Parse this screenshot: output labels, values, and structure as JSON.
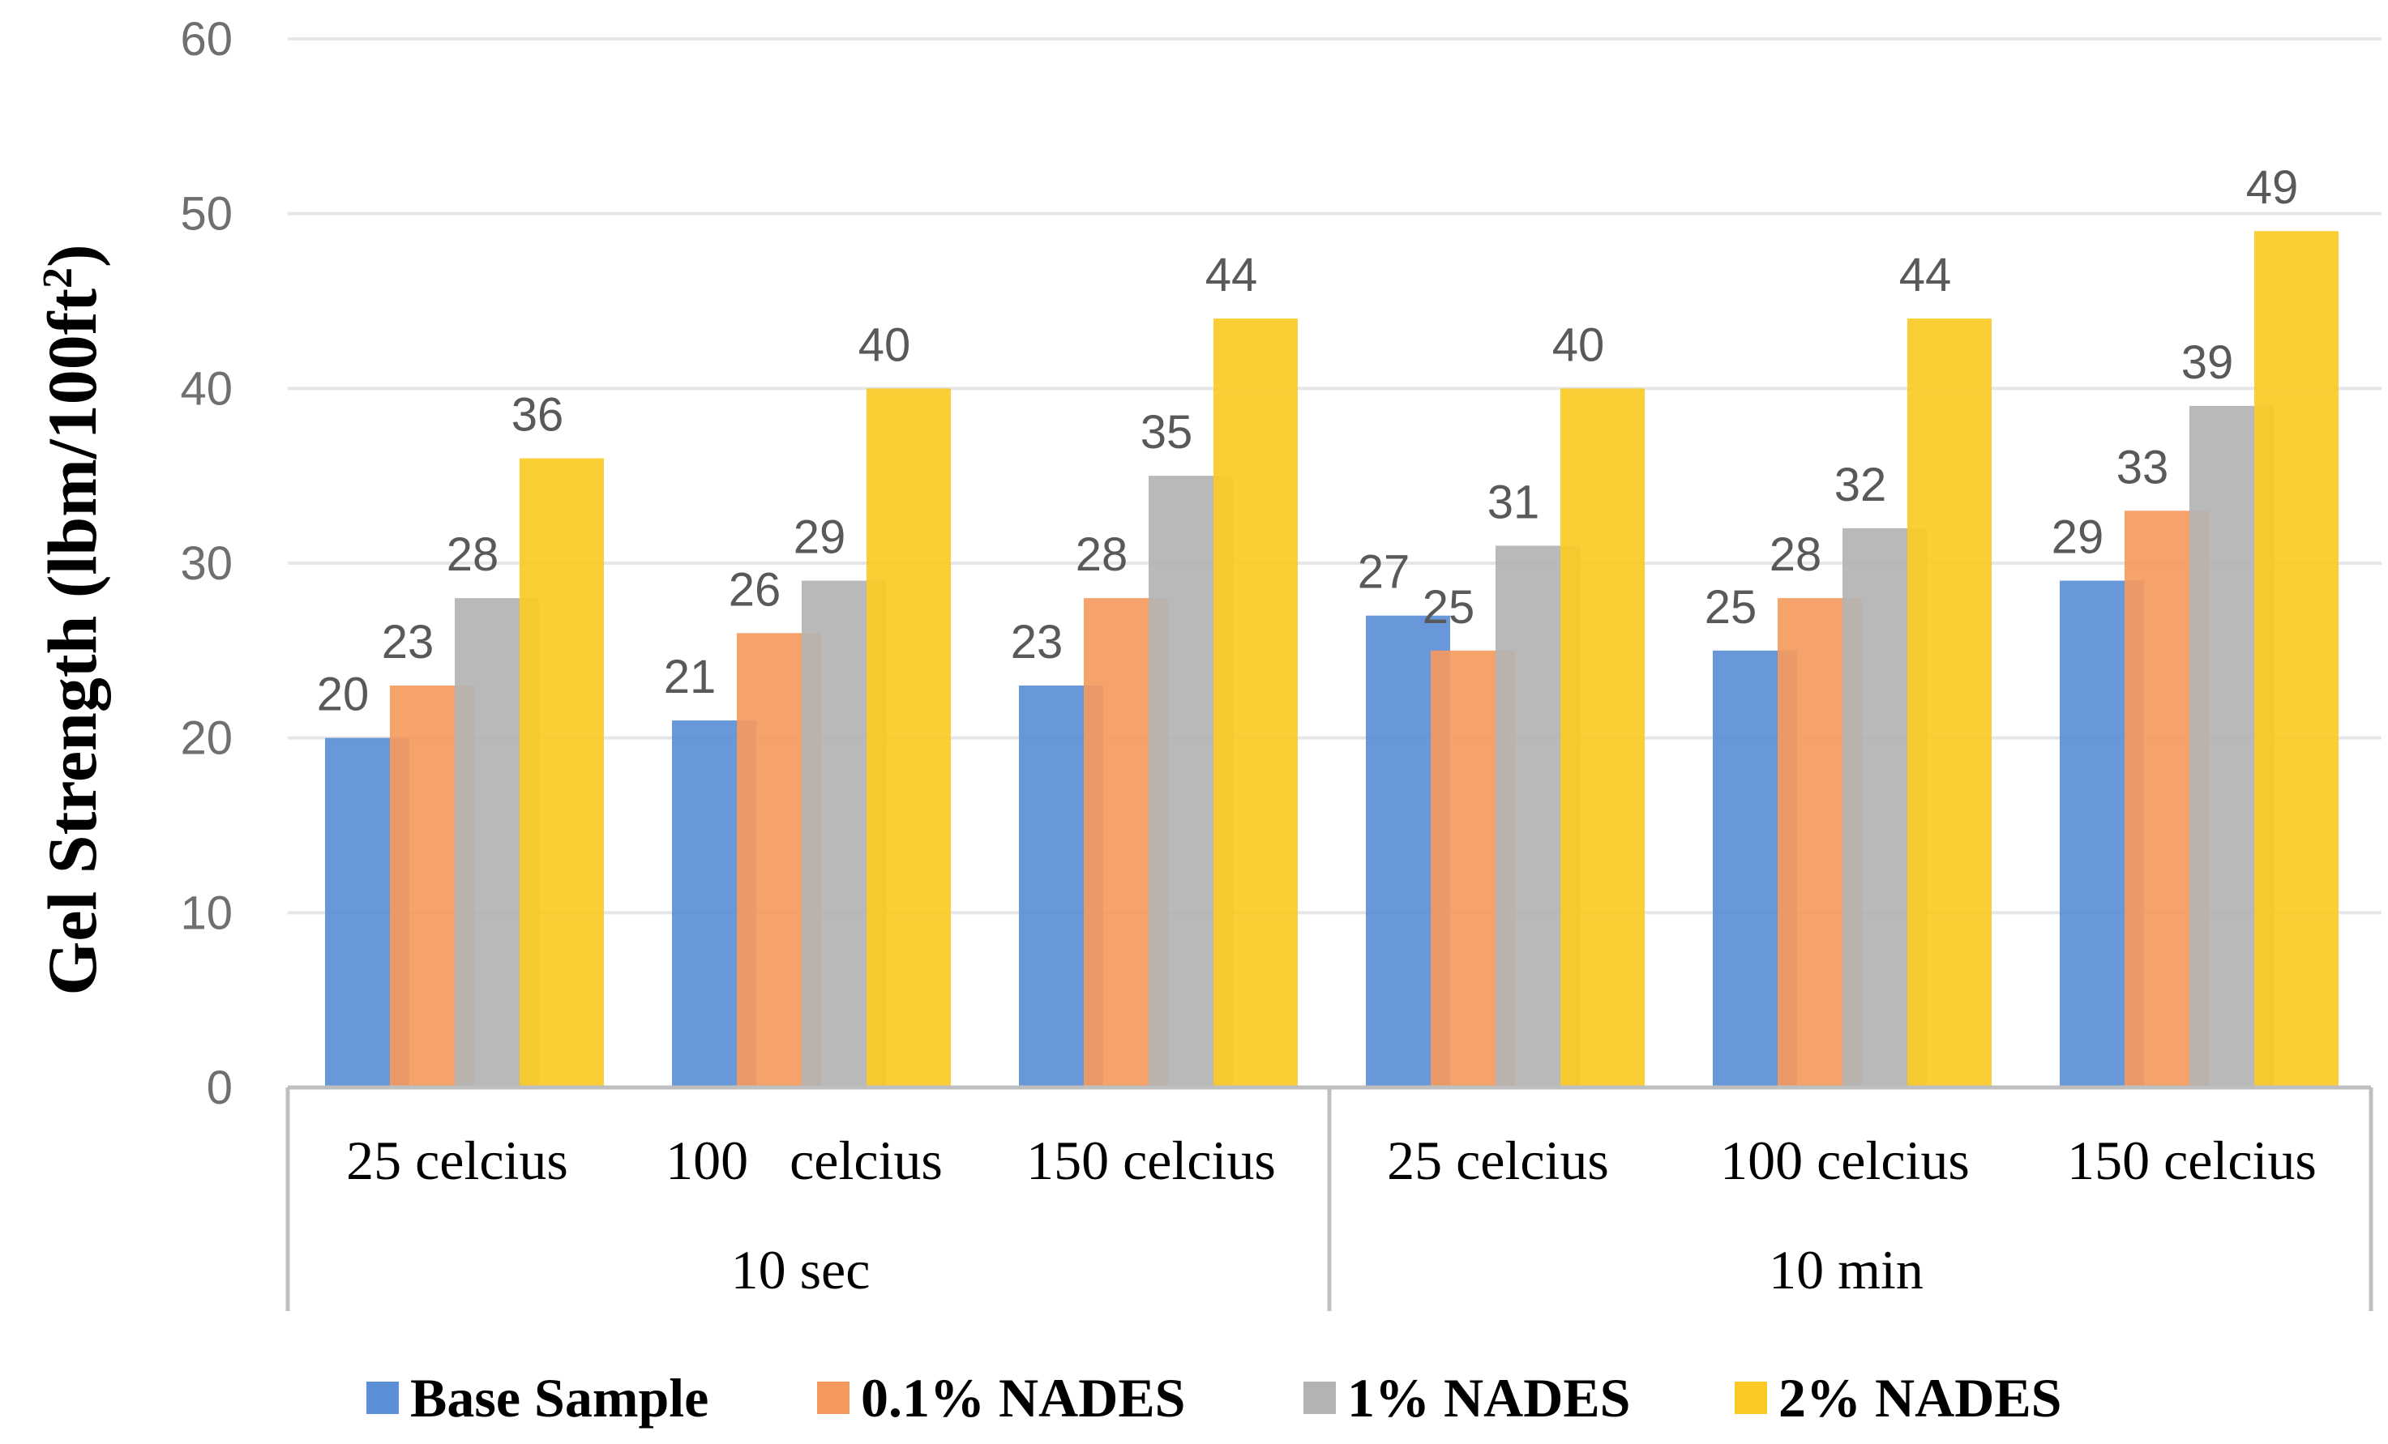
{
  "chart_data": {
    "type": "bar",
    "ylabel_main": "Gel Strength (lbm/100ft",
    "ylabel_sup": "2",
    "ylabel_close": ")",
    "ylim": [
      0,
      60
    ],
    "yticks": [
      "0",
      "10",
      "20",
      "30",
      "40",
      "50",
      "60"
    ],
    "groups": [
      {
        "label": "10 sec",
        "categories": [
          "25 celcius",
          "100   celcius",
          "150 celcius"
        ]
      },
      {
        "label": "10 min",
        "categories": [
          "25 celcius",
          "100 celcius",
          "150 celcius"
        ]
      }
    ],
    "series": [
      {
        "name": "Base Sample",
        "color": "#5b8fd6",
        "values": [
          20,
          21,
          23,
          27,
          25,
          29
        ]
      },
      {
        "name": "0.1% NADES",
        "color": "#f59a5e",
        "values": [
          23,
          26,
          28,
          25,
          28,
          33
        ]
      },
      {
        "name": "1% NADES",
        "color": "#b3b3b3",
        "values": [
          28,
          29,
          35,
          31,
          32,
          39
        ]
      },
      {
        "name": "2% NADES",
        "color": "#fbca25",
        "values": [
          36,
          40,
          44,
          40,
          44,
          49
        ]
      }
    ],
    "grid": true,
    "legend_position": "bottom"
  }
}
